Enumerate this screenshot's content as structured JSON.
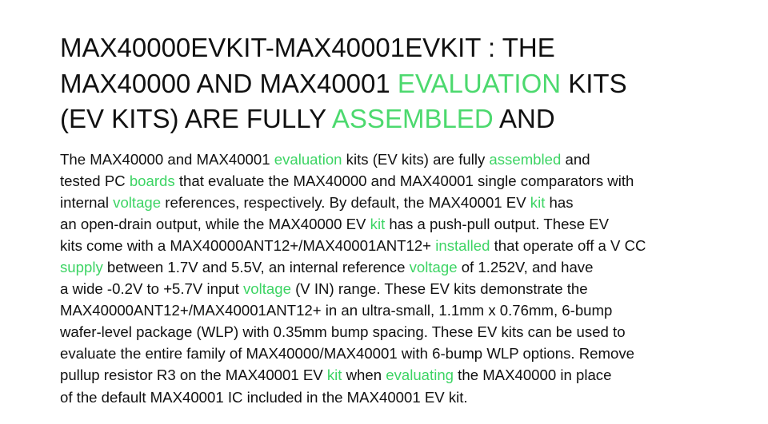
{
  "document": {
    "title_lines": [
      [
        {
          "t": "MAX40000EVKIT-MAX40001EVKIT : THE",
          "hl": false
        }
      ],
      [
        {
          "t": "MAX40000 AND MAX40001 ",
          "hl": false
        },
        {
          "t": "EVALUATION",
          "hl": true
        },
        {
          "t": " KITS",
          "hl": false
        }
      ],
      [
        {
          "t": "(EV KITS) ARE FULLY ",
          "hl": false
        },
        {
          "t": "ASSEMBLED",
          "hl": true
        },
        {
          "t": " AND",
          "hl": false
        }
      ]
    ],
    "body_lines": [
      [
        {
          "t": "The MAX40000 and MAX40001 ",
          "hl": false
        },
        {
          "t": "evaluation",
          "hl": true
        },
        {
          "t": " kits (EV kits) are fully ",
          "hl": false
        },
        {
          "t": "assembled",
          "hl": true
        },
        {
          "t": " and",
          "hl": false
        }
      ],
      [
        {
          "t": "tested PC ",
          "hl": false
        },
        {
          "t": "boards",
          "hl": true
        },
        {
          "t": " that evaluate the MAX40000 and MAX40001 single comparators with",
          "hl": false
        }
      ],
      [
        {
          "t": "internal ",
          "hl": false
        },
        {
          "t": "voltage",
          "hl": true
        },
        {
          "t": " references, respectively. By default, the MAX40001 EV ",
          "hl": false
        },
        {
          "t": "kit",
          "hl": true
        },
        {
          "t": " has",
          "hl": false
        }
      ],
      [
        {
          "t": "an open-drain output, while the MAX40000 EV ",
          "hl": false
        },
        {
          "t": "kit",
          "hl": true
        },
        {
          "t": " has a push-pull output. These EV",
          "hl": false
        }
      ],
      [
        {
          "t": "kits come with a MAX40000ANT12+/MAX40001ANT12+ ",
          "hl": false
        },
        {
          "t": "installed",
          "hl": true
        },
        {
          "t": " that operate off a V CC",
          "hl": false
        }
      ],
      [
        {
          "t": "supply",
          "hl": true
        },
        {
          "t": " between 1.7V and 5.5V, an internal reference ",
          "hl": false
        },
        {
          "t": "voltage",
          "hl": true
        },
        {
          "t": " of 1.252V, and have",
          "hl": false
        }
      ],
      [
        {
          "t": "a wide -0.2V to +5.7V input ",
          "hl": false
        },
        {
          "t": "voltage",
          "hl": true
        },
        {
          "t": " (V IN) range. These EV kits demonstrate the",
          "hl": false
        }
      ],
      [
        {
          "t": "MAX40000ANT12+/MAX40001ANT12+ in an ultra-small, 1.1mm x 0.76mm, 6-bump",
          "hl": false
        }
      ],
      [
        {
          "t": "wafer-level package (WLP) with 0.35mm bump spacing. These EV kits can be used to",
          "hl": false
        }
      ],
      [
        {
          "t": "evaluate the entire family of MAX40000/MAX40001 with 6-bump WLP options. Remove",
          "hl": false
        }
      ],
      [
        {
          "t": "pullup resistor R3 on the MAX40001 EV ",
          "hl": false
        },
        {
          "t": "kit",
          "hl": true
        },
        {
          "t": " when ",
          "hl": false
        },
        {
          "t": "evaluating",
          "hl": true
        },
        {
          "t": " the MAX40000 in place",
          "hl": false
        }
      ],
      [
        {
          "t": "of the default MAX40001 IC included in the MAX40001 EV kit.",
          "hl": false
        }
      ]
    ]
  },
  "colors": {
    "text": "#111111",
    "highlight": "#3dd464",
    "background": "#ffffff"
  }
}
